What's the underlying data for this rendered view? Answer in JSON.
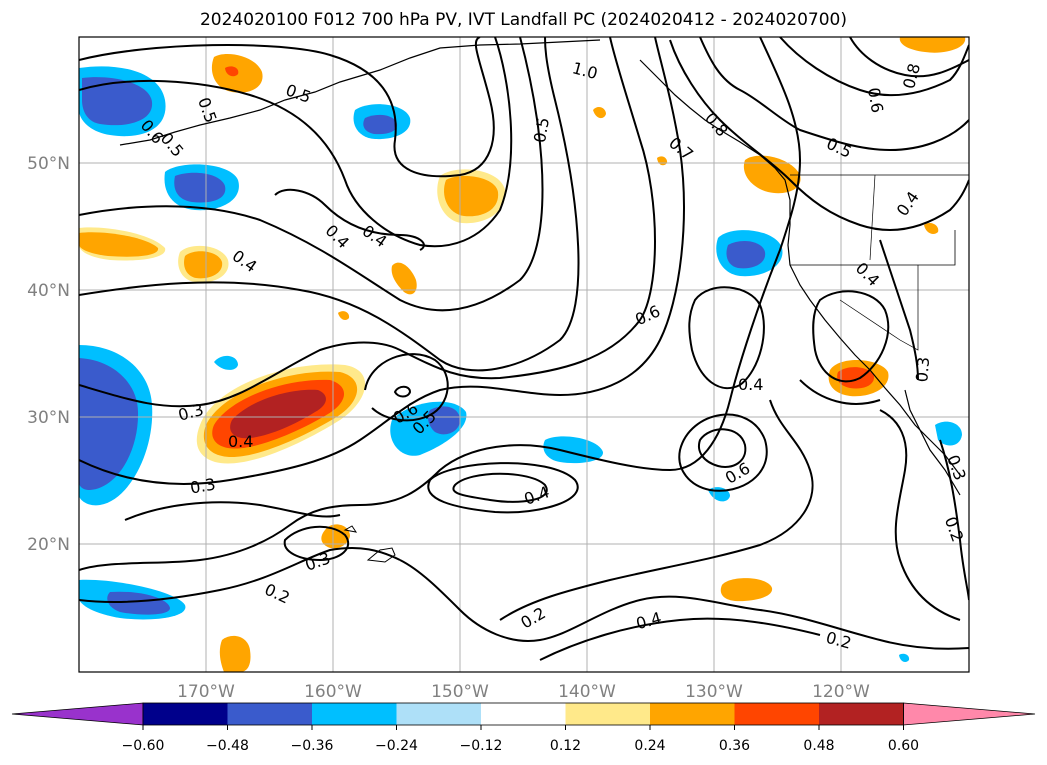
{
  "title": "2024020100 F012 700 hPa PV, IVT Landfall PC (2024020412 - 2024020700)",
  "map": {
    "lon_range": [
      -180,
      -110
    ],
    "lat_range": [
      10,
      60
    ],
    "lat_ticks": [
      "20°N",
      "30°N",
      "40°N",
      "50°N"
    ],
    "lon_ticks": [
      "170°W",
      "160°W",
      "150°W",
      "140°W",
      "130°W",
      "120°W"
    ],
    "grid": true,
    "contour_labels": [
      "1.0",
      "0.5",
      "0.5",
      "0.6",
      "0.5",
      "0.4",
      "0.5",
      "0.4",
      "0.4",
      "0.7",
      "0.8",
      "0.6",
      "0.8",
      "0.5",
      "0.4",
      "0.4",
      "0.6",
      "0.4",
      "0.3",
      "0.3",
      "0.4",
      "0.6",
      "0.5",
      "0.4",
      "0.6",
      "0.3",
      "0.3",
      "0.2",
      "0.2",
      "0.4",
      "0.2",
      "0.3",
      "0.2"
    ]
  },
  "colorbar": {
    "tick_labels": [
      "−0.60",
      "−0.48",
      "−0.36",
      "−0.24",
      "−0.12",
      "0.12",
      "0.24",
      "0.36",
      "0.48",
      "0.60"
    ],
    "colors": [
      "#9932cc",
      "#00008b",
      "#3a5bcc",
      "#00bfff",
      "#aee0f8",
      "#ffffff",
      "#ffe98a",
      "#ffa500",
      "#ff4500",
      "#b22222",
      "#ff88aa"
    ]
  }
}
